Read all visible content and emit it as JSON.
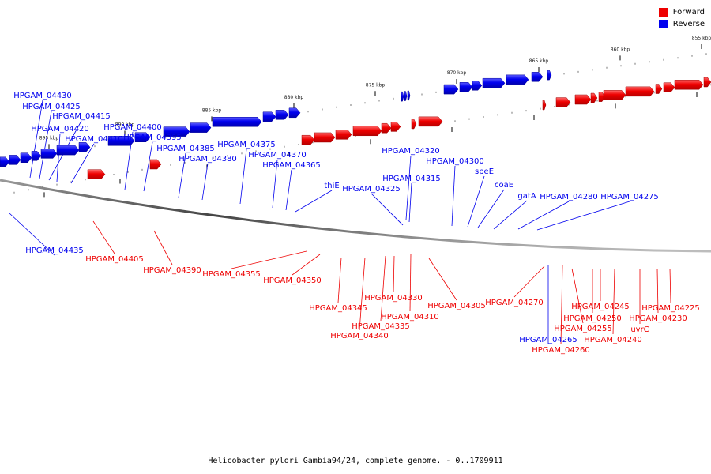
{
  "legend": {
    "forward_label": "Forward",
    "reverse_label": "Reverse",
    "forward_color": "#ee0000",
    "reverse_color": "#0000ee"
  },
  "caption": "Helicobacter pylori Gambia94/24, complete genome. - 0..1709911",
  "scale_labels": [
    "895 kbp",
    "890 kbp",
    "885 kbp",
    "880 kbp",
    "875 kbp",
    "870 kbp",
    "865 kbp",
    "860 kbp",
    "855 kbp"
  ],
  "reverse_genes": [
    "HPGAM_04430",
    "HPGAM_04425",
    "HPGAM_04415",
    "HPGAM_04420",
    "HPGAM_04410",
    "HPGAM_04400",
    "HPGAM_04395",
    "HPGAM_04385",
    "HPGAM_04380",
    "HPGAM_04375",
    "HPGAM_04370",
    "HPGAM_04365",
    "thiE",
    "HPGAM_04325",
    "HPGAM_04320",
    "HPGAM_04315",
    "HPGAM_04300",
    "speE",
    "coaE",
    "gatA",
    "HPGAM_04280",
    "HPGAM_04275",
    "HPGAM_04435",
    "HPGAM_04265"
  ],
  "forward_genes": [
    "HPGAM_04405",
    "HPGAM_04390",
    "HPGAM_04355",
    "HPGAM_04350",
    "HPGAM_04345",
    "HPGAM_04340",
    "HPGAM_04335",
    "HPGAM_04330",
    "HPGAM_04310",
    "HPGAM_04305",
    "HPGAM_04270",
    "HPGAM_04260",
    "HPGAM_04255",
    "HPGAM_04250",
    "HPGAM_04245",
    "HPGAM_04240",
    "uvrC",
    "HPGAM_04230",
    "HPGAM_04225"
  ]
}
